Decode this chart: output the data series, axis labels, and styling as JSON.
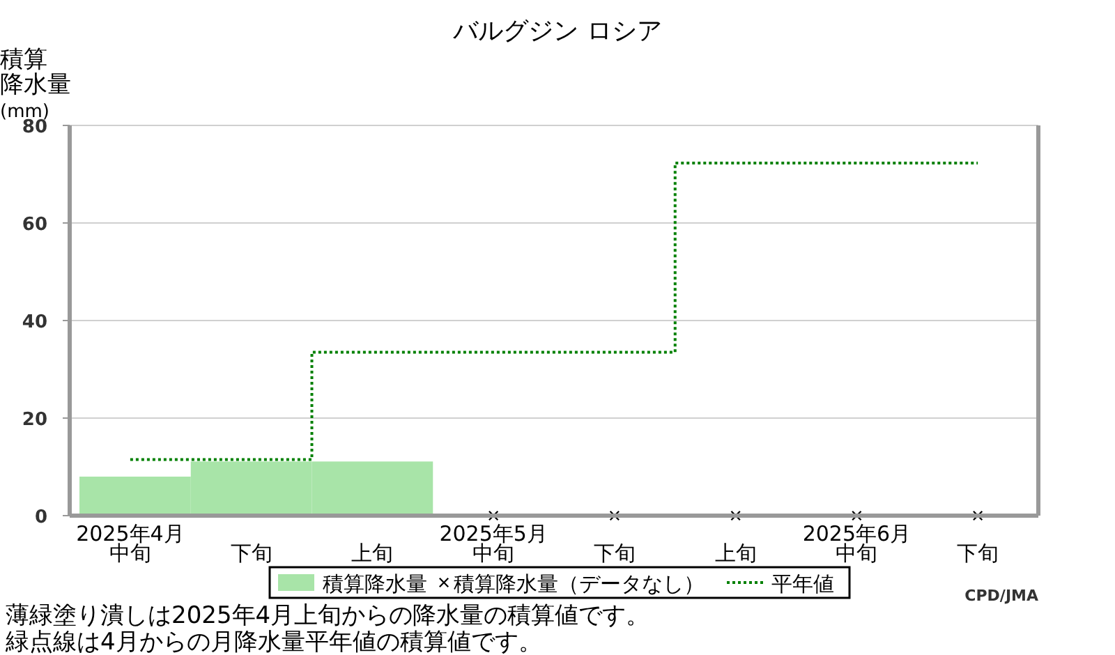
{
  "chart_data": {
    "type": "bar",
    "title": "バルグジン ロシア",
    "ylabel": "積算降水量(mm)",
    "categories": [
      "2025年4月中旬",
      "下旬",
      "上旬",
      "2025年5月中旬",
      "下旬",
      "上旬",
      "2025年6月中旬",
      "下旬"
    ],
    "series": [
      {
        "name": "積算降水量",
        "color": "#a8e4a8",
        "values": [
          8,
          11.1,
          11.1,
          null,
          null,
          null,
          null,
          null
        ]
      },
      {
        "name": "積算降水量（データなし）",
        "type": "scatter",
        "marker": "cross",
        "color": "#000000",
        "values": [
          null,
          null,
          null,
          0,
          0,
          0,
          0,
          0
        ]
      },
      {
        "name": "平年値",
        "type": "step",
        "line_style": "dotted",
        "color": "#008000",
        "values": [
          11.5,
          11.5,
          33.5,
          33.5,
          33.5,
          72.3,
          72.3,
          72.3
        ]
      }
    ],
    "ylim": [
      0,
      80
    ],
    "yticks": [
      0,
      20,
      40,
      60,
      80
    ],
    "grid": "y",
    "legend": "bottom",
    "annotations": [
      "薄緑塗り潰しは2025年4月上旬からの降水量の積算値です。",
      "緑点線は4月からの月降水量平年値の積算値です。",
      "CPD/JMA"
    ]
  }
}
